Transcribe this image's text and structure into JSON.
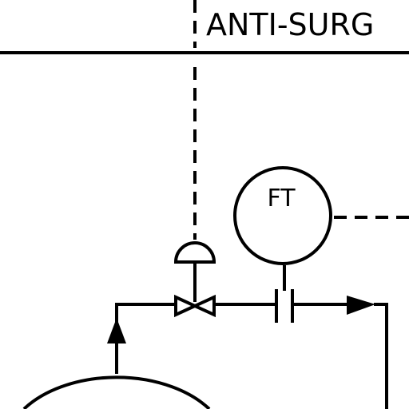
{
  "diagram": {
    "title_text": "ANTI-SURG",
    "instrument_tag": "FT"
  },
  "colors": {
    "line": "#000000",
    "background": "#ffffff"
  },
  "icons": {
    "valve": "control-valve-icon",
    "actuator": "diaphragm-actuator-icon",
    "orifice": "orifice-plate-icon",
    "flow_arrow": "flow-arrow-icon",
    "vessel": "vessel-icon"
  }
}
